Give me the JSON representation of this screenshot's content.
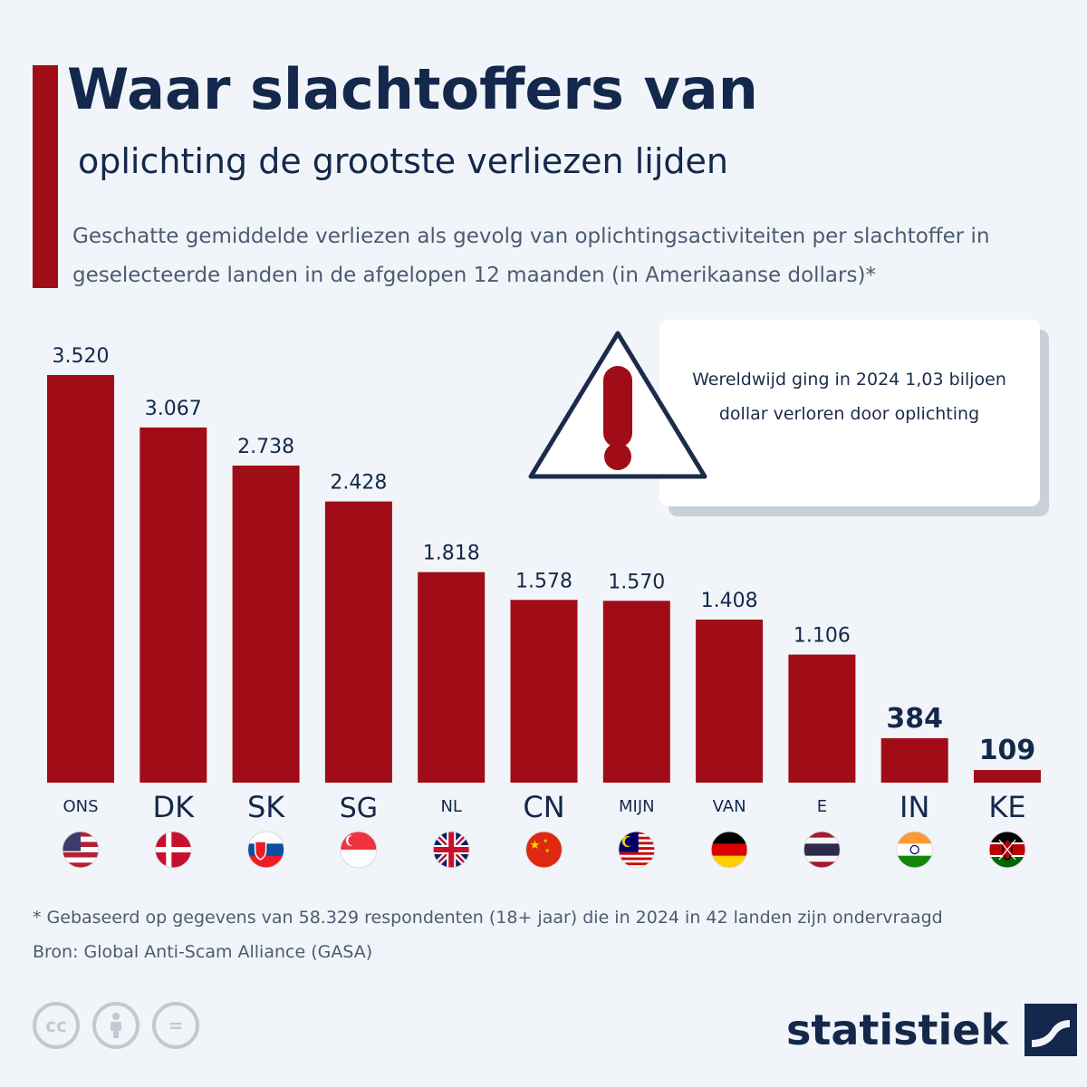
{
  "header": {
    "title": "Waar slachtoffers van",
    "title_line2": "oplichting de grootste verliezen lijden",
    "subtitle": "Geschatte gemiddelde verliezen als gevolg van oplichtingsactiviteiten per slachtoffer in geselecteerde landen in de afgelopen 12 maanden (in Amerikaanse dollars)*"
  },
  "callout": {
    "text": "Wereldwijd ging in 2024 1,03 biljoen dollar verloren door oplichting",
    "icon": "warning-triangle-icon"
  },
  "chart_data": {
    "type": "bar",
    "categories": [
      "ONS",
      "DK",
      "SK",
      "SG",
      "NL",
      "CN",
      "MIJN",
      "VAN",
      "E",
      "IN",
      "KE"
    ],
    "values": [
      3520,
      3067,
      2738,
      2428,
      1818,
      1578,
      1570,
      1408,
      1106,
      384,
      109
    ],
    "value_labels": [
      "3.520",
      "3.067",
      "2.738",
      "2.428",
      "1.818",
      "1.578",
      "1.570",
      "1.408",
      "1.106",
      "384",
      "109"
    ],
    "flags": [
      "us",
      "dk",
      "sk",
      "sg",
      "gb",
      "cn",
      "my",
      "de",
      "th",
      "in",
      "ke"
    ],
    "bar_color": "#a10d17",
    "ylim": [
      0,
      3520
    ]
  },
  "footer": {
    "footnote": "* Gebaseerd op gegevens van 58.329 respondenten (18+ jaar) die in 2024 in 42 landen zijn ondervraagd",
    "source": "Bron: Global Anti-Scam Alliance (GASA)",
    "license_icons": [
      "cc-icon",
      "attribution-icon",
      "no-derivatives-icon"
    ],
    "license_glyphs": [
      "cc",
      "",
      "="
    ],
    "brand": "statistiek",
    "brand_icon": "statista-logo-icon"
  }
}
